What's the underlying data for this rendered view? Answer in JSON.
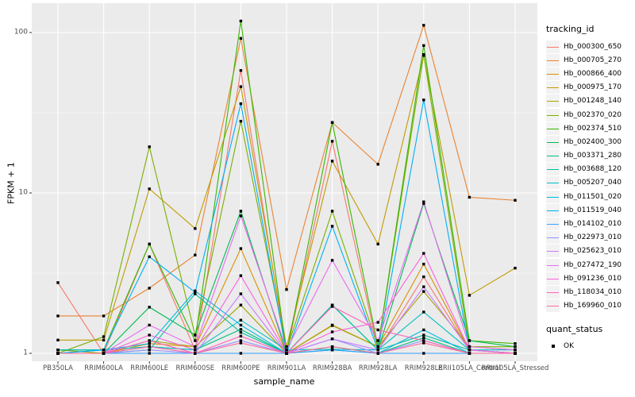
{
  "chart_data": {
    "type": "line",
    "title": "",
    "xlabel": "sample_name",
    "ylabel": "FPKM + 1",
    "y_scale": "log10",
    "ylim": [
      1,
      130
    ],
    "y_major_ticks": [
      1,
      10,
      100
    ],
    "y_tick_labels": [
      "1",
      "10",
      "100"
    ],
    "y_minor_ticks": [
      3.1623,
      31.623
    ],
    "grid": true,
    "panel_bg": "#EBEBEB",
    "grid_color": "#FFFFFF",
    "axis_text_color": "#4D4D4D",
    "point_shape": "square",
    "point_color": "#000000",
    "legend_position": "right",
    "categories": [
      "PB350LA",
      "RRIM600LA",
      "RRIM600LE",
      "RRIM600SE",
      "RRIM600PE",
      "RRIM901LA",
      "RRIM928BA",
      "RRIM928LA",
      "RRIM928LE",
      "RRII105LA_Control",
      "RRII105LA_Stressed"
    ],
    "legend": {
      "title": "tracking_id"
    },
    "legend2": {
      "title": "quant_status",
      "items": [
        {
          "label": "OK",
          "marker": "black-square"
        }
      ]
    },
    "series": [
      {
        "name": "Hb_000300_650",
        "color": "#F8766D",
        "values": [
          2.76,
          1.0,
          4.8,
          1.05,
          58,
          1.0,
          21,
          1.05,
          3.0,
          1.05,
          1.0
        ]
      },
      {
        "name": "Hb_000705_270",
        "color": "#EA8331",
        "values": [
          1.71,
          1.71,
          2.55,
          4.1,
          92,
          2.5,
          27.5,
          15.1,
          111,
          9.4,
          9.0
        ]
      },
      {
        "name": "Hb_000866_400",
        "color": "#D89000",
        "values": [
          1.0,
          1.0,
          1.15,
          1.1,
          4.5,
          1.0,
          1.5,
          1.1,
          3.6,
          1.05,
          1.0
        ]
      },
      {
        "name": "Hb_000975_170",
        "color": "#C09B00",
        "values": [
          1.21,
          1.21,
          10.6,
          6.0,
          46,
          1.1,
          15.8,
          4.8,
          72,
          2.3,
          3.4
        ]
      },
      {
        "name": "Hb_001248_140",
        "color": "#A3A500",
        "values": [
          1.05,
          1.0,
          1.2,
          1.1,
          2.0,
          1.0,
          1.49,
          1.1,
          2.43,
          1.1,
          1.05
        ]
      },
      {
        "name": "Hb_002370_020",
        "color": "#7CAE00",
        "values": [
          1.0,
          1.27,
          19.4,
          1.3,
          28,
          1.05,
          7.7,
          1.1,
          73,
          1.1,
          1.1
        ]
      },
      {
        "name": "Hb_002374_510",
        "color": "#39B600",
        "values": [
          1.05,
          1.05,
          4.8,
          1.2,
          118,
          1.0,
          27.5,
          1.1,
          83,
          1.2,
          1.15
        ]
      },
      {
        "name": "Hb_002400_300",
        "color": "#00BB4E",
        "values": [
          1.0,
          1.0,
          1.94,
          1.3,
          7.7,
          1.0,
          2.0,
          1.05,
          8.6,
          1.2,
          1.1
        ]
      },
      {
        "name": "Hb_003371_280",
        "color": "#00BF7D",
        "values": [
          1.0,
          1.0,
          1.1,
          1.05,
          1.41,
          1.0,
          1.1,
          1.0,
          1.25,
          1.0,
          1.0
        ]
      },
      {
        "name": "Hb_003688_120",
        "color": "#00C1A3",
        "values": [
          1.0,
          1.0,
          1.05,
          2.35,
          1.35,
          1.0,
          2.0,
          1.05,
          1.3,
          1.05,
          1.0
        ]
      },
      {
        "name": "Hb_005207_040",
        "color": "#00BFC4",
        "values": [
          1.05,
          1.05,
          1.1,
          1.05,
          1.61,
          1.05,
          1.06,
          1.05,
          1.81,
          1.05,
          1.05
        ]
      },
      {
        "name": "Hb_011501_020",
        "color": "#00BAE0",
        "values": [
          1.0,
          1.05,
          1.15,
          2.45,
          1.5,
          1.0,
          1.05,
          1.0,
          1.4,
          1.0,
          1.0
        ]
      },
      {
        "name": "Hb_011519_040",
        "color": "#00B0F6",
        "values": [
          1.0,
          1.05,
          4.0,
          2.4,
          36,
          1.0,
          6.2,
          1.05,
          38,
          1.05,
          1.0
        ]
      },
      {
        "name": "Hb_014102_010",
        "color": "#35A2FF",
        "values": [
          1.0,
          1.0,
          1.0,
          1.0,
          1.0,
          1.0,
          1.05,
          1.0,
          1.0,
          1.0,
          1.0
        ]
      },
      {
        "name": "Hb_022973_010",
        "color": "#9590FF",
        "values": [
          1.0,
          1.0,
          1.05,
          1.0,
          1.2,
          1.0,
          1.23,
          1.0,
          1.2,
          1.0,
          1.0
        ]
      },
      {
        "name": "Hb_025623_010",
        "color": "#C77CFF",
        "values": [
          1.0,
          1.0,
          1.1,
          1.0,
          2.35,
          1.0,
          1.23,
          1.05,
          2.6,
          1.05,
          1.0
        ]
      },
      {
        "name": "Hb_027472_190",
        "color": "#E76BF3",
        "values": [
          1.0,
          1.0,
          1.5,
          1.1,
          7.2,
          1.05,
          3.8,
          1.2,
          8.8,
          1.1,
          1.05
        ]
      },
      {
        "name": "Hb_091236_010",
        "color": "#FA62DB",
        "values": [
          1.0,
          1.0,
          1.3,
          1.05,
          3.05,
          1.0,
          1.36,
          1.56,
          4.2,
          1.05,
          1.0
        ]
      },
      {
        "name": "Hb_118034_010",
        "color": "#FF62BC",
        "values": [
          1.0,
          1.0,
          1.2,
          1.0,
          1.28,
          1.0,
          1.96,
          1.4,
          1.2,
          1.0,
          1.0
        ]
      },
      {
        "name": "Hb_169960_010",
        "color": "#FF6A98",
        "values": [
          1.0,
          1.0,
          1.1,
          1.0,
          1.16,
          1.0,
          1.1,
          1.0,
          1.16,
          1.0,
          1.0
        ]
      }
    ]
  }
}
